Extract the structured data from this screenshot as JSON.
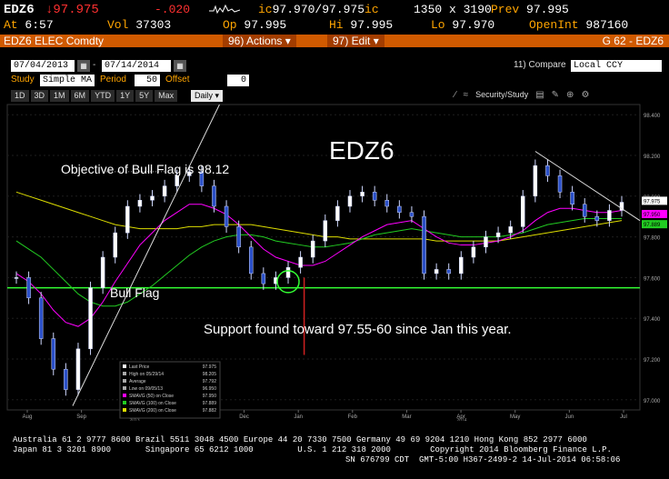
{
  "quote": {
    "ticker": "EDZ6",
    "last": "97.975",
    "change": "-.020",
    "bid_ask": "97.970/97.975",
    "bid_ask_label": "ic",
    "bid_ask_label_2": "ic",
    "size": "1350 x 3190",
    "prev_label": "Prev",
    "prev": "97.995",
    "at_label": "At",
    "time": "6:57",
    "vol_label": "Vol",
    "vol": "37303",
    "op_label": "Op",
    "open": "97.995",
    "hi_label": "Hi",
    "high": "97.995",
    "lo_label": "Lo",
    "low": "97.970",
    "oi_label": "OpenInt",
    "open_int": "987160"
  },
  "header": {
    "security": "EDZ6 ELEC Comdty",
    "actions": "96) Actions ▾",
    "edit": "97) Edit ▾",
    "page": "G 62 - EDZ6"
  },
  "range": {
    "start": "07/04/2013",
    "end": "07/14/2014",
    "compare_label": "11) Compare",
    "compare_value": "Local CCY"
  },
  "study": {
    "label": "Study",
    "value": "Simple MA",
    "period_label": "Period",
    "period": "50",
    "offset_label": "Offset",
    "offset": "0"
  },
  "periods": [
    "1D",
    "3D",
    "1M",
    "6M",
    "YTD",
    "1Y",
    "5Y",
    "Max"
  ],
  "freq": "Daily ▾",
  "security_study": "Security/Study",
  "chart_data": {
    "type": "line",
    "title": "EDZ6",
    "x_labels": [
      "Aug",
      "Sep",
      "Oct",
      "Nov",
      "Dec",
      "Jan",
      "Feb",
      "Mar",
      "Apr",
      "May",
      "Jun",
      "Jul"
    ],
    "year_labels": [
      "2013",
      "2014"
    ],
    "y_ticks": [
      "98.400",
      "98.200",
      "98.000",
      "97.800",
      "97.600",
      "97.400",
      "97.200",
      "97.000"
    ],
    "ylim": [
      96.95,
      98.45
    ],
    "series": [
      {
        "name": "Last Price",
        "values": [
          97.6,
          97.5,
          97.3,
          97.15,
          97.05,
          97.25,
          97.55,
          97.7,
          97.82,
          97.95,
          97.98,
          98.0,
          98.05,
          98.1,
          98.12,
          98.05,
          97.95,
          97.85,
          97.75,
          97.62,
          97.57,
          97.6,
          97.65,
          97.7,
          97.78,
          97.88,
          97.95,
          98.0,
          98.02,
          97.98,
          97.95,
          97.92,
          97.9,
          97.62,
          97.64,
          97.62,
          97.7,
          97.75,
          97.8,
          97.82,
          97.85,
          98.0,
          98.15,
          98.1,
          98.02,
          97.96,
          97.9,
          97.88,
          97.93,
          97.97
        ]
      },
      {
        "name": "SMAVG (50) on Close",
        "values": [
          97.62,
          97.58,
          97.52,
          97.44,
          97.38,
          97.36,
          97.4,
          97.48,
          97.58,
          97.67,
          97.76,
          97.82,
          97.88,
          97.92,
          97.96,
          97.96,
          97.94,
          97.91,
          97.86,
          97.8,
          97.74,
          97.7,
          97.68,
          97.66,
          97.66,
          97.68,
          97.72,
          97.76,
          97.8,
          97.83,
          97.86,
          97.87,
          97.88,
          97.84,
          97.8,
          97.77,
          97.76,
          97.76,
          97.77,
          97.78,
          97.8,
          97.83,
          97.88,
          97.92,
          97.94,
          97.94,
          97.93,
          97.92,
          97.92,
          97.93
        ]
      },
      {
        "name": "SMAVG (100) on Close",
        "values": [
          97.78,
          97.74,
          97.7,
          97.64,
          97.58,
          97.52,
          97.48,
          97.46,
          97.46,
          97.48,
          97.52,
          97.56,
          97.61,
          97.66,
          97.71,
          97.75,
          97.78,
          97.8,
          97.81,
          97.81,
          97.8,
          97.78,
          97.77,
          97.76,
          97.75,
          97.75,
          97.76,
          97.77,
          97.79,
          97.81,
          97.82,
          97.83,
          97.84,
          97.83,
          97.82,
          97.81,
          97.8,
          97.8,
          97.8,
          97.8,
          97.81,
          97.82,
          97.84,
          97.86,
          97.87,
          97.88,
          97.89,
          97.89,
          97.89,
          97.89
        ]
      },
      {
        "name": "SMAVG (200) on Close",
        "values": [
          98.02,
          98.0,
          97.98,
          97.96,
          97.94,
          97.92,
          97.9,
          97.88,
          97.86,
          97.85,
          97.84,
          97.84,
          97.84,
          97.84,
          97.85,
          97.85,
          97.86,
          97.86,
          97.86,
          97.86,
          97.85,
          97.84,
          97.83,
          97.82,
          97.81,
          97.8,
          97.8,
          97.79,
          97.79,
          97.79,
          97.79,
          97.79,
          97.79,
          97.79,
          97.78,
          97.78,
          97.78,
          97.78,
          97.78,
          97.78,
          97.79,
          97.8,
          97.81,
          97.82,
          97.83,
          97.84,
          97.85,
          97.86,
          97.87,
          97.88
        ]
      }
    ],
    "support_level": 97.55,
    "annotations": {
      "objective": "Objective of Bull Flag is 98.12",
      "bull_flag": "Bull Flag",
      "support": "Support found toward 97.55-60 since Jan this year."
    },
    "last_badge": "97.975",
    "ma_badge": "97.950",
    "ma_badge2": "97.889",
    "legend": [
      {
        "label": "Last Price",
        "value": "97.975",
        "color": "#ffffff"
      },
      {
        "label": "High on 05/29/14",
        "value": "98.205",
        "color": "#aaaaaa"
      },
      {
        "label": "Average",
        "value": "97.792",
        "color": "#aaaaaa"
      },
      {
        "label": "Low on 09/05/13",
        "value": "96.950",
        "color": "#aaaaaa"
      },
      {
        "label": "SMAVG (50) on Close",
        "value": "97.950",
        "color": "#ff00ff"
      },
      {
        "label": "SMAVG (100) on Close",
        "value": "97.889",
        "color": "#22cc22"
      },
      {
        "label": "SMAVG (200) on Close",
        "value": "97.882",
        "color": "#dddd00"
      }
    ]
  },
  "footer": {
    "line1": "Australia 61 2 9777 8600 Brazil 5511 3048 4500 Europe 44 20 7330 7500 Germany 49 69 9204 1210 Hong Kong 852 2977 6000",
    "line2": "Japan 81 3 3201 8900       Singapore 65 6212 1000         U.S. 1 212 318 2000        Copyright 2014 Bloomberg Finance L.P.",
    "line3": "SN 676799 CDT  GMT-5:00 H367-2499-2 14-Jul-2014 06:58:06"
  }
}
